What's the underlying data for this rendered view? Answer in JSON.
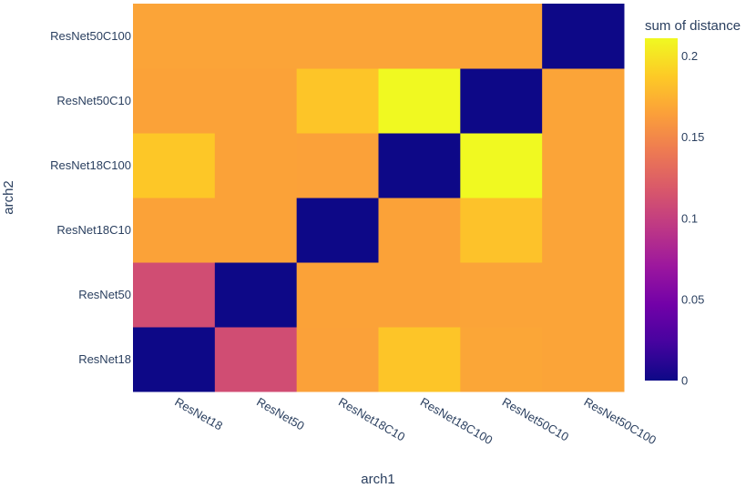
{
  "chart_data": {
    "type": "heatmap",
    "x_categories": [
      "ResNet18",
      "ResNet50",
      "ResNet18C10",
      "ResNet18C100",
      "ResNet50C10",
      "ResNet50C100"
    ],
    "y_categories": [
      "ResNet18",
      "ResNet50",
      "ResNet18C10",
      "ResNet18C100",
      "ResNet50C10",
      "ResNet50C100"
    ],
    "z": [
      [
        0.0,
        0.11,
        0.165,
        0.185,
        0.168,
        0.167
      ],
      [
        0.11,
        0.0,
        0.166,
        0.166,
        0.167,
        0.167
      ],
      [
        0.166,
        0.166,
        0.0,
        0.166,
        0.183,
        0.167
      ],
      [
        0.186,
        0.166,
        0.165,
        0.0,
        0.211,
        0.167
      ],
      [
        0.166,
        0.166,
        0.185,
        0.211,
        0.0,
        0.167
      ],
      [
        0.167,
        0.167,
        0.167,
        0.167,
        0.167,
        0.0
      ]
    ],
    "xlabel": "arch1",
    "ylabel": "arch2",
    "colorbar": {
      "title": "sum of distance",
      "range": [
        0,
        0.211
      ],
      "ticks": [
        0,
        0.05,
        0.1,
        0.15,
        0.2
      ],
      "tick_labels": [
        "0",
        "0.05",
        "0.1",
        "0.15",
        "0.2"
      ]
    },
    "colorscale": [
      "#0d0887",
      "#46039f",
      "#7201a8",
      "#9c179e",
      "#bd3786",
      "#d8576b",
      "#ed7953",
      "#fb9f3a",
      "#fdca26",
      "#f0f921"
    ],
    "x_tick_angle": 30
  }
}
